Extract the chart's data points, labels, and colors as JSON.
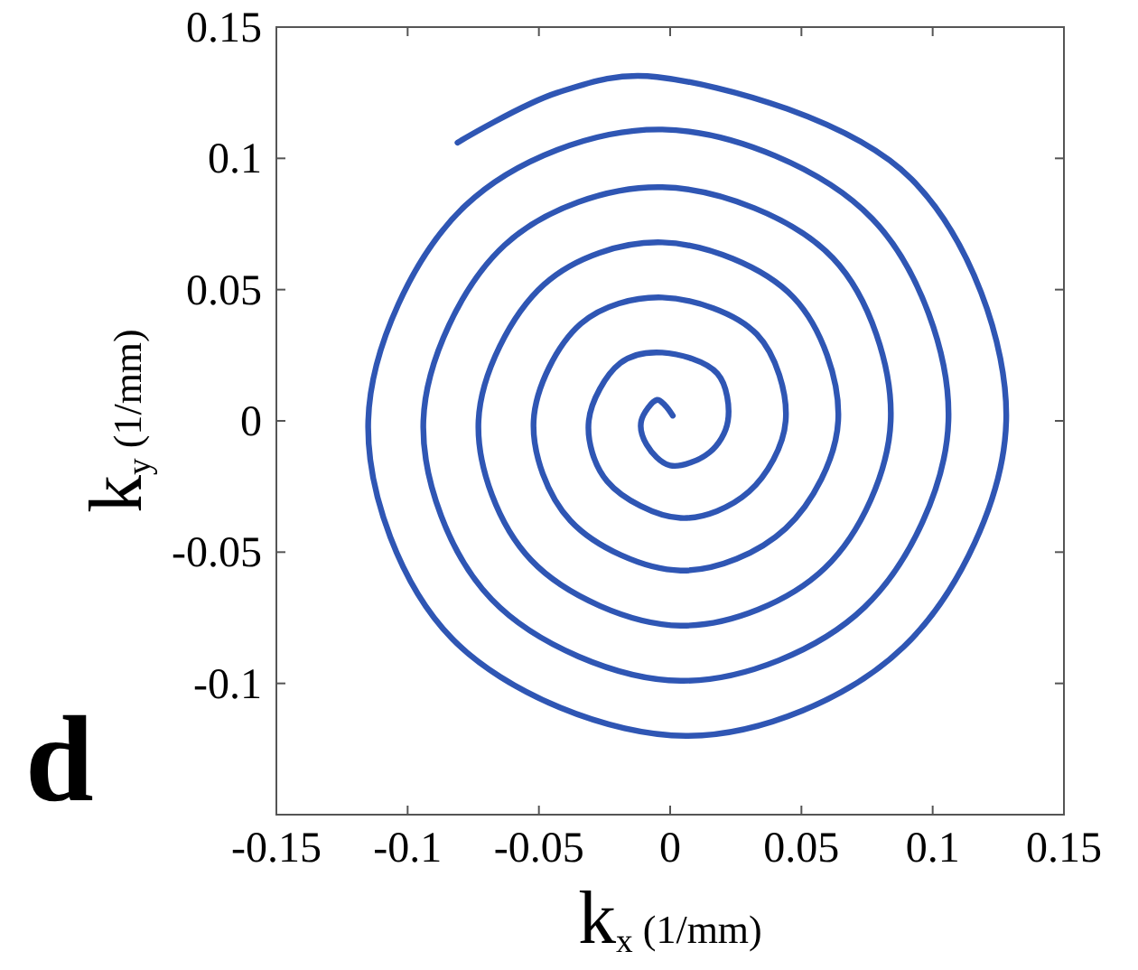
{
  "chart_data": {
    "type": "line",
    "xlabel": "k$_{x}$ (1/mm)",
    "ylabel": "k$_{y}$ (1/mm)",
    "annotations": [
      "d"
    ],
    "xlim": [
      -0.15,
      0.15
    ],
    "ylim": [
      -0.15,
      0.15
    ],
    "xticks": [
      -0.15,
      -0.1,
      -0.05,
      0,
      0.05,
      0.1,
      0.15
    ],
    "yticks": [
      -0.1,
      -0.05,
      0,
      0.05,
      0.1,
      0.15
    ],
    "grid": false,
    "marker": "none",
    "line_style": "solid",
    "series": [
      {
        "color": "#2f56b4",
        "x": [
          0.001,
          -0.002,
          -0.005,
          -0.011,
          -0.009,
          0.0,
          0.015,
          0.022,
          0.018,
          -0.003,
          -0.019,
          -0.031,
          -0.024,
          0.004,
          0.03,
          0.044,
          0.033,
          -0.003,
          -0.034,
          -0.052,
          -0.038,
          0.004,
          0.044,
          0.064,
          0.047,
          -0.003,
          -0.048,
          -0.073,
          -0.053,
          0.004,
          0.059,
          0.084,
          0.062,
          -0.003,
          -0.063,
          -0.094,
          -0.068,
          0.004,
          0.074,
          0.106,
          0.077,
          -0.003,
          -0.078,
          -0.115,
          -0.083,
          0.006,
          0.089,
          0.128,
          0.092,
          -0.005,
          -0.043,
          -0.081
        ],
        "values": [
          0.002,
          0.006,
          0.008,
          0,
          -0.009,
          -0.017,
          -0.012,
          0,
          0.018,
          0.026,
          0.022,
          0,
          -0.023,
          -0.037,
          -0.027,
          0,
          0.033,
          0.047,
          0.037,
          0,
          -0.038,
          -0.057,
          -0.041,
          0,
          0.047,
          0.068,
          0.052,
          0,
          -0.053,
          -0.078,
          -0.056,
          0,
          0.062,
          0.089,
          0.067,
          0,
          -0.068,
          -0.099,
          -0.071,
          0,
          0.077,
          0.111,
          0.082,
          0,
          -0.083,
          -0.12,
          -0.086,
          0,
          0.092,
          0.131,
          0.125,
          0.106
        ]
      }
    ]
  }
}
